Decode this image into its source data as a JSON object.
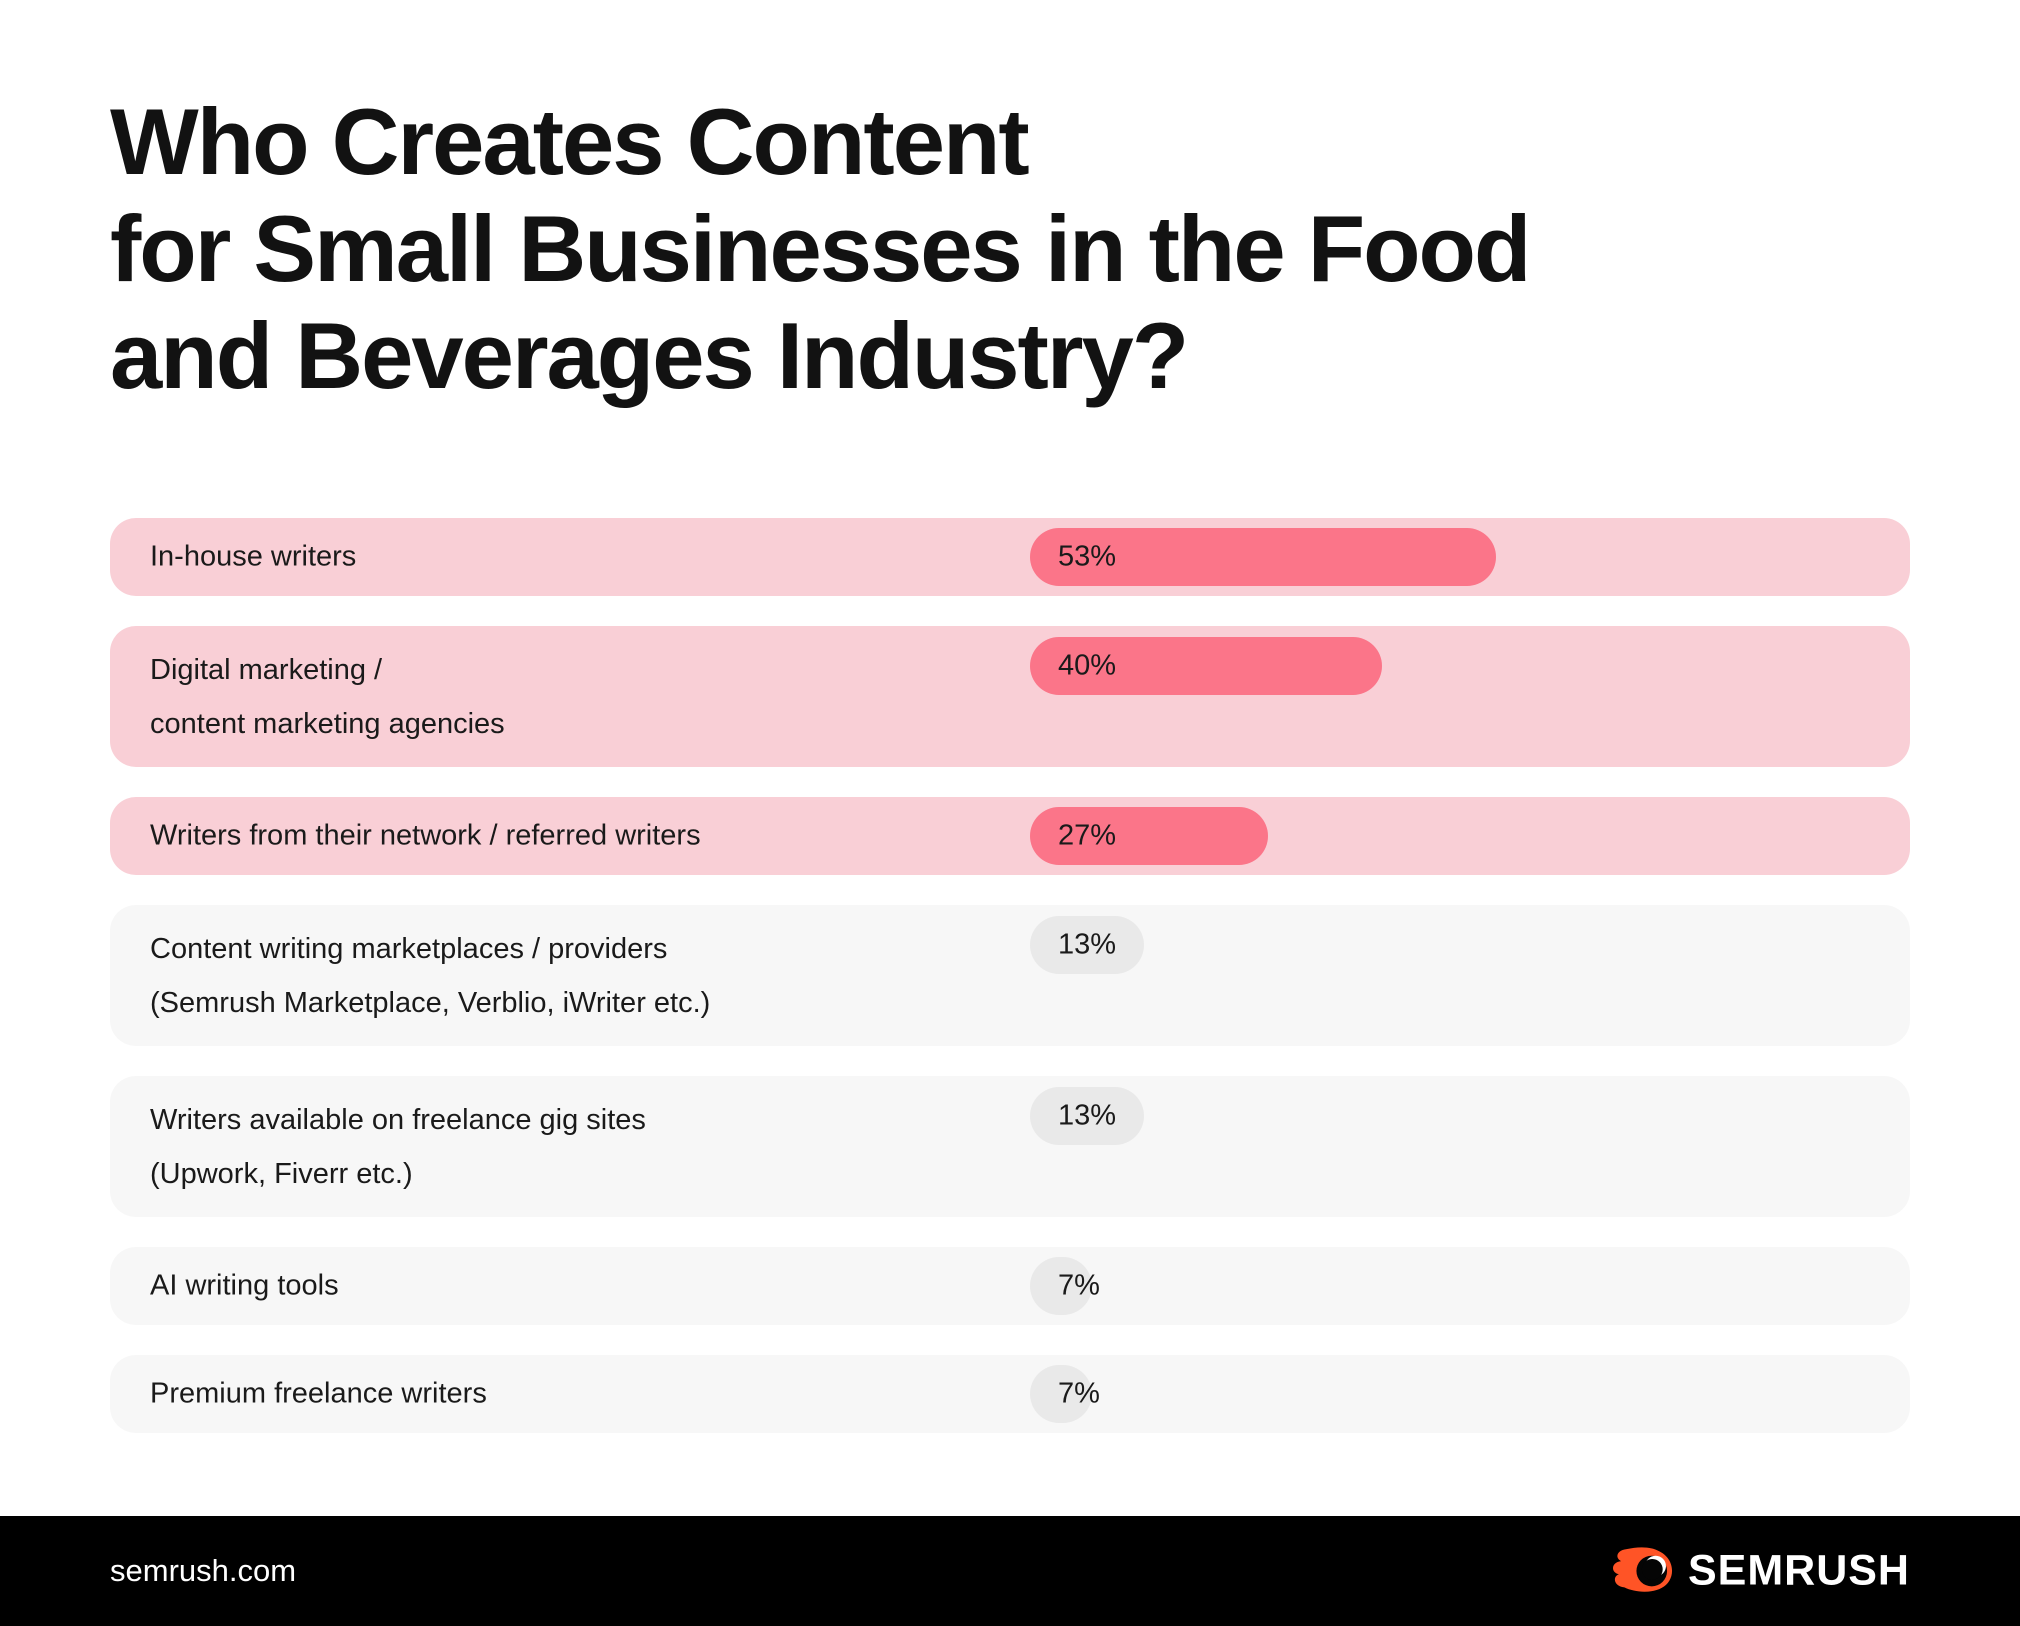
{
  "title": {
    "lines": [
      "Who Creates Content",
      "for Small Businesses in the Food",
      "and Beverages Industry?"
    ]
  },
  "chart_data": {
    "type": "bar",
    "orientation": "horizontal",
    "title": "Who Creates Content for Small Businesses in the Food and Beverages Industry?",
    "categories": [
      "In-house writers",
      "Digital marketing / content marketing agencies",
      "Writers from their network / referred writers",
      "Content writing marketplaces / providers (Semrush Marketplace, Verblio, iWriter etc.)",
      "Writers available on freelance gig sites (Upwork, Fiverr etc.)",
      "AI writing tools",
      "Premium freelance writers"
    ],
    "values": [
      53,
      40,
      27,
      13,
      13,
      7,
      7
    ],
    "value_labels": [
      "53%",
      "40%",
      "27%",
      "13%",
      "13%",
      "7%",
      "7%"
    ],
    "unit": "%",
    "xlim": [
      0,
      100
    ],
    "highlighted": [
      true,
      true,
      true,
      false,
      false,
      false,
      false
    ],
    "legend": "none",
    "grid": false
  },
  "rows": [
    {
      "label_lines": [
        "In-house writers"
      ],
      "value": "53%",
      "pct": 53,
      "highlighted": true
    },
    {
      "label_lines": [
        "Digital marketing /",
        "content marketing agencies"
      ],
      "value": "40%",
      "pct": 40,
      "highlighted": true
    },
    {
      "label_lines": [
        "Writers from their network / referred writers"
      ],
      "value": "27%",
      "pct": 27,
      "highlighted": true
    },
    {
      "label_lines": [
        "Content writing marketplaces / providers",
        "(Semrush Marketplace, Verblio, iWriter etc.)"
      ],
      "value": "13%",
      "pct": 13,
      "highlighted": false
    },
    {
      "label_lines": [
        "Writers available on freelance gig sites",
        "(Upwork, Fiverr etc.)"
      ],
      "value": "13%",
      "pct": 13,
      "highlighted": false
    },
    {
      "label_lines": [
        "AI writing tools"
      ],
      "value": "7%",
      "pct": 7,
      "highlighted": false
    },
    {
      "label_lines": [
        "Premium freelance writers"
      ],
      "value": "7%",
      "pct": 7,
      "highlighted": false
    }
  ],
  "footer": {
    "site": "semrush.com",
    "brand": "SEMRUSH"
  },
  "colors": {
    "row_pink": "#F9CFD6",
    "bar_pink": "#FB7589",
    "row_gray": "#F7F7F7",
    "bar_gray": "#E9E9E9",
    "title_text": "#121212",
    "label_text": "#1A1A1A",
    "footer_bg": "#000000",
    "footer_text": "#FFFFFF",
    "brand_orange": "#FF5426"
  }
}
